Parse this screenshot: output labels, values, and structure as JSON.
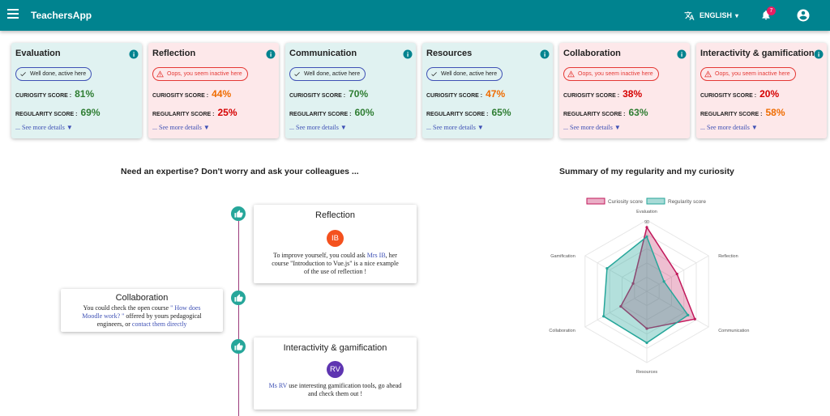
{
  "header": {
    "app_title": "TeachersApp",
    "language": "ENGLISH",
    "notification_count": "7",
    "accent": "#00838f"
  },
  "cards": [
    {
      "title": "Evaluation",
      "status": "Well done, active here",
      "curiosity_label": "CURIOSITY SCORE :",
      "curiosity": "81%",
      "regularity_label": "REGULARITY SCORE :",
      "regularity": "69%",
      "more": "... See more details",
      "arrow": "▼"
    },
    {
      "title": "Reflection",
      "status": "Oops, you seem inactive here",
      "curiosity_label": "CURIOSITY SCORE :",
      "curiosity": "44%",
      "regularity_label": "REGULARITY SCORE :",
      "regularity": "25%",
      "more": "... See more details",
      "arrow": "▼"
    },
    {
      "title": "Communication",
      "status": "Well done, active here",
      "curiosity_label": "CURIOSITY SCORE :",
      "curiosity": "70%",
      "regularity_label": "REGULARITY SCORE :",
      "regularity": "60%",
      "more": "... See more details",
      "arrow": "▼"
    },
    {
      "title": "Resources",
      "status": "Well done, active here",
      "curiosity_label": "CURIOSITY SCORE :",
      "curiosity": "47%",
      "regularity_label": "REGULARITY SCORE :",
      "regularity": "65%",
      "more": "... See more details",
      "arrow": "▼"
    },
    {
      "title": "Collaboration",
      "status": "Oops, you seem inactive here",
      "curiosity_label": "CURIOSITY SCORE :",
      "curiosity": "38%",
      "regularity_label": "REGULARITY SCORE :",
      "regularity": "63%",
      "more": "... See more details",
      "arrow": "▼"
    },
    {
      "title": "Interactivity & gamification",
      "status": "Oops, you seem inactive here",
      "curiosity_label": "CURIOSITY SCORE :",
      "curiosity": "20%",
      "regularity_label": "REGULARITY SCORE :",
      "regularity": "58%",
      "more": "... See more details",
      "arrow": "▼"
    }
  ],
  "colleagues": {
    "title": "Need an expertise? Don't worry and ask your colleagues ...",
    "items": [
      {
        "title": "Reflection",
        "avatar": "IB",
        "avatar_color": "#f4511e",
        "t1": "To improve yourself, you could ask ",
        "link1": "Mrs IB",
        "t2": ", her course \"Introduction to Vue.js\" is a nice example of the use of reflection !"
      },
      {
        "title": "Collaboration",
        "t1": "You could check the open course ",
        "link1": "\" How does Moodle work? \"",
        "t2": " offered by yours pedagogical engineers, or ",
        "link2": "contact them directly"
      },
      {
        "title": "Interactivity & gamification",
        "avatar": "RV",
        "avatar_color": "#5e35b1",
        "link1": "Ms RV",
        "t2": " use interesting gamification tools, go ahead and check them out !"
      }
    ]
  },
  "summary": {
    "title": "Summary of my regularity and my curiosity"
  },
  "chart_data": {
    "type": "radar",
    "title": "",
    "categories": [
      "Evaluation",
      "Reflection",
      "Communication",
      "Resources",
      "Collaboration",
      "Gamification"
    ],
    "ticks": [
      "90"
    ],
    "rmax": 90,
    "series": [
      {
        "name": "Curiosity score",
        "values": [
          81,
          44,
          70,
          47,
          38,
          20
        ],
        "color": "#c2185b"
      },
      {
        "name": "Regularity score",
        "values": [
          69,
          25,
          60,
          65,
          63,
          58
        ],
        "color": "#26a69a"
      }
    ],
    "legend": "top"
  }
}
